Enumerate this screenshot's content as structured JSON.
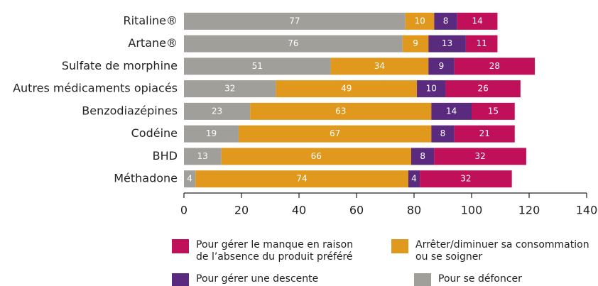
{
  "chart_data": {
    "type": "bar",
    "orientation": "horizontal",
    "stacked": true,
    "categories": [
      "Ritaline®",
      "Artane®",
      "Sulfate de morphine",
      "Autres médicaments opiacés",
      "Benzodiazépines",
      "Codéine",
      "BHD",
      "Méthadone"
    ],
    "series": [
      {
        "name": "Pour se défoncer",
        "color": "#a19f9a",
        "values": [
          77,
          76,
          51,
          32,
          23,
          19,
          13,
          4
        ]
      },
      {
        "name": "Arrêter/diminuer sa consommation ou se soigner",
        "color": "#e0991c",
        "values": [
          10,
          9,
          34,
          49,
          63,
          67,
          66,
          74
        ]
      },
      {
        "name": "Pour gérer une descente",
        "color": "#5a2a7f",
        "values": [
          8,
          13,
          9,
          10,
          14,
          8,
          8,
          4
        ]
      },
      {
        "name": "Pour gérer le manque en raison de l’absence du produit préféré",
        "color": "#c0105a",
        "values": [
          14,
          11,
          28,
          26,
          15,
          21,
          32,
          32
        ]
      }
    ],
    "xlim": [
      0,
      140
    ],
    "xticks": [
      0,
      20,
      40,
      60,
      80,
      100,
      120,
      140
    ]
  }
}
